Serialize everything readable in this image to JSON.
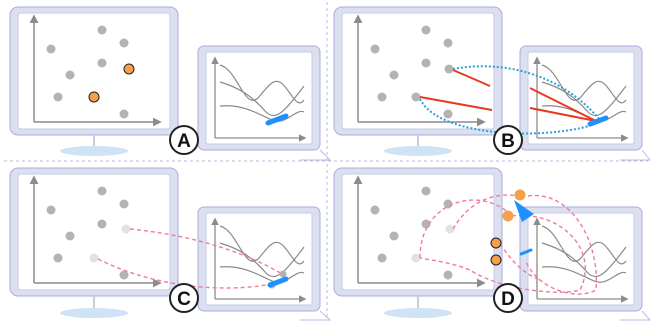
{
  "panels": [
    {
      "id": "A",
      "label": "A"
    },
    {
      "id": "B",
      "label": "B"
    },
    {
      "id": "C",
      "label": "C"
    },
    {
      "id": "D",
      "label": "D"
    }
  ],
  "colors": {
    "monitor_frame": "#dcdff0",
    "monitor_border": "#a9aedb",
    "screen": "#ffffff",
    "stand": "#cfe2f6",
    "axis": "#8c8c8c",
    "point": "#b3b3b3",
    "highlight": "#f5a04a",
    "highlight_outline": "#222222",
    "brush": "#1e90ff",
    "link_red": "#e8391f",
    "link_blue": "#2aa0d8",
    "link_pink": "#f07aa0",
    "divider": "#b9bde0"
  }
}
